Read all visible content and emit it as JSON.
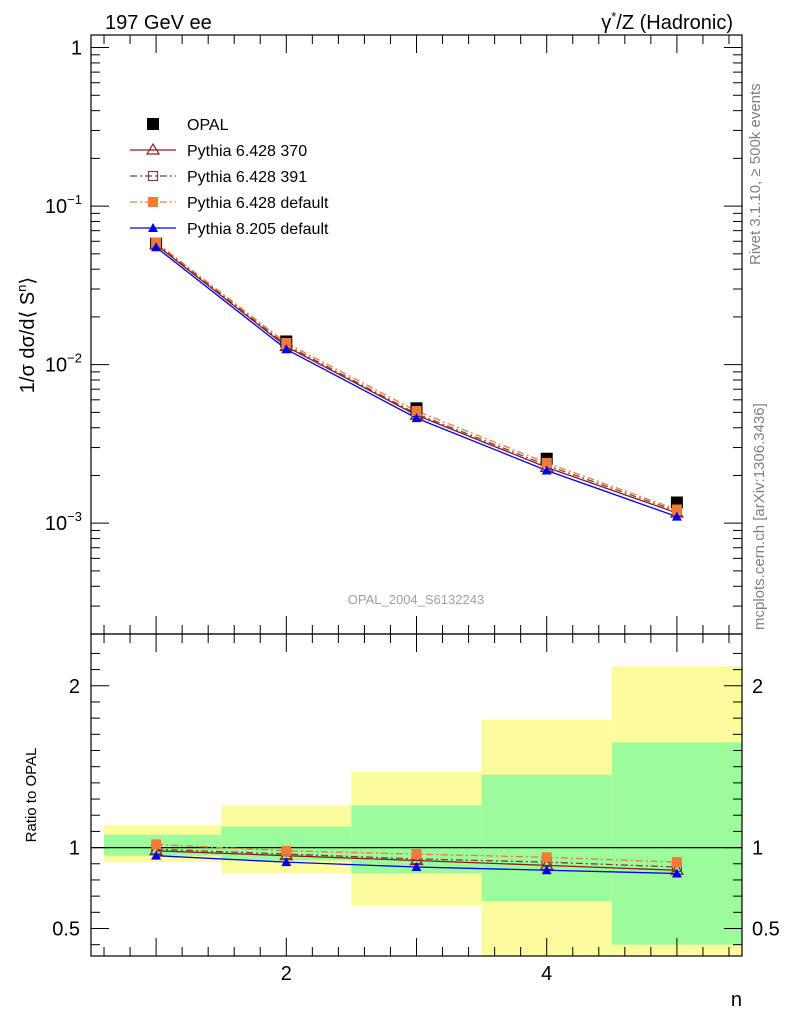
{
  "header": {
    "left_title": "197 GeV ee",
    "right_title_base": "γ",
    "right_title_sup": "*",
    "right_title_rest": "/Z (Hadronic)"
  },
  "side_labels": {
    "rivet": "Rivet 3.1.10, ≥ 500k events",
    "source": "mcplots.cern.ch [arXiv:1306.3436]"
  },
  "colors": {
    "opal": "#000000",
    "p370": "#8b1a1a",
    "p391": "#7a4040",
    "p6def": "#f47a35",
    "p8def": "#0000ee",
    "band_inner": "#9cfc9c",
    "band_outer": "#fcfc9c"
  },
  "chart_data": [
    {
      "type": "line",
      "title": "OPAL_2004_S6132243",
      "ylabel_prefix": "1/σ dσ/d⟨ S",
      "ylabel_sup": "n",
      "ylabel_suffix": "⟩",
      "yscale": "log",
      "xlim": [
        0.5,
        5.5
      ],
      "ylim": [
        0.0002,
        1.2
      ],
      "y_ticks": [
        {
          "value": 1,
          "base": "1",
          "exp": ""
        },
        {
          "value": 0.1,
          "base": "10",
          "exp": "−1"
        },
        {
          "value": 0.01,
          "base": "10",
          "exp": "−2"
        },
        {
          "value": 0.001,
          "base": "10",
          "exp": "−3"
        }
      ],
      "x": [
        1,
        2,
        3,
        4,
        5
      ],
      "series": [
        {
          "name": "OPAL",
          "key": "opal",
          "marker": "square-filled",
          "line": "none",
          "values": [
            0.058,
            0.014,
            0.0053,
            0.00255,
            0.00135
          ]
        },
        {
          "name": "Pythia 6.428 370",
          "key": "p370",
          "marker": "triangle-open",
          "line": "solid",
          "values": [
            0.057,
            0.013,
            0.0048,
            0.00225,
            0.00116
          ]
        },
        {
          "name": "Pythia 6.428 391",
          "key": "p391",
          "marker": "square-open",
          "line": "dashdot",
          "values": [
            0.058,
            0.0133,
            0.0049,
            0.00232,
            0.00119
          ]
        },
        {
          "name": "Pythia 6.428 default",
          "key": "p6def",
          "marker": "square-filled",
          "line": "dashdot",
          "values": [
            0.059,
            0.0137,
            0.0051,
            0.0024,
            0.00122
          ]
        },
        {
          "name": "Pythia 8.205 default",
          "key": "p8def",
          "marker": "triangle-filled",
          "line": "solid",
          "values": [
            0.055,
            0.0125,
            0.0046,
            0.00215,
            0.0011
          ]
        }
      ]
    },
    {
      "type": "line",
      "title": "",
      "ylabel": "Ratio to OPAL",
      "xlabel": "n",
      "xlim": [
        0.5,
        5.5
      ],
      "ylim": [
        0.33,
        2.32
      ],
      "y_ticks": [
        {
          "value": 0.5,
          "label": "0.5"
        },
        {
          "value": 1,
          "label": "1"
        },
        {
          "value": 2,
          "label": "2"
        }
      ],
      "x_ticks": [
        {
          "value": 2,
          "label": "2"
        },
        {
          "value": 4,
          "label": "4"
        }
      ],
      "bands": [
        {
          "x_lo": 0.6,
          "x_hi": 1.5,
          "inner": [
            0.95,
            1.08
          ],
          "outer": [
            0.91,
            1.14
          ]
        },
        {
          "x_lo": 1.5,
          "x_hi": 2.5,
          "inner": [
            0.92,
            1.13
          ],
          "outer": [
            0.84,
            1.26
          ]
        },
        {
          "x_lo": 2.5,
          "x_hi": 3.5,
          "inner": [
            0.84,
            1.26
          ],
          "outer": [
            0.64,
            1.47
          ]
        },
        {
          "x_lo": 3.5,
          "x_hi": 4.5,
          "inner": [
            0.67,
            1.45
          ],
          "outer": [
            0.33,
            1.79
          ]
        },
        {
          "x_lo": 4.5,
          "x_hi": 5.5,
          "inner": [
            0.4,
            1.65
          ],
          "outer": [
            0.33,
            2.12
          ]
        }
      ],
      "x": [
        1,
        2,
        3,
        4,
        5
      ],
      "series": [
        {
          "name": "Pythia 6.428 370",
          "key": "p370",
          "values": [
            0.98,
            0.95,
            0.92,
            0.89,
            0.86
          ]
        },
        {
          "name": "Pythia 6.428 391",
          "key": "p391",
          "values": [
            0.99,
            0.96,
            0.93,
            0.91,
            0.88
          ]
        },
        {
          "name": "Pythia 6.428 default",
          "key": "p6def",
          "values": [
            1.02,
            0.98,
            0.96,
            0.94,
            0.91
          ]
        },
        {
          "name": "Pythia 8.205 default",
          "key": "p8def",
          "values": [
            0.95,
            0.91,
            0.88,
            0.86,
            0.84
          ]
        }
      ]
    }
  ]
}
